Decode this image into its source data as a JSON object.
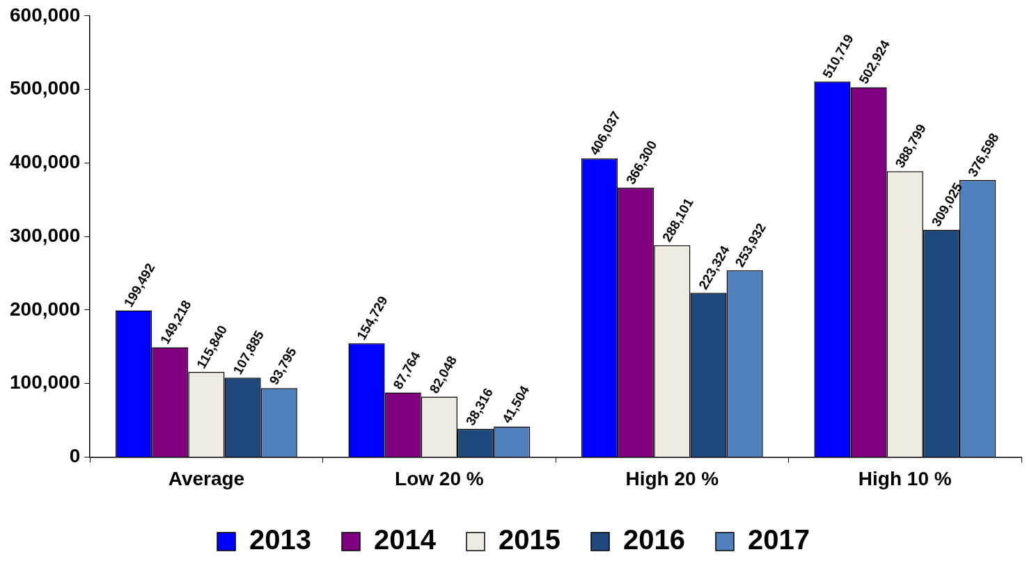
{
  "chart_data": {
    "type": "bar",
    "categories": [
      "Average",
      "Low 20 %",
      "High 20 %",
      "High 10 %"
    ],
    "series": [
      {
        "name": "2013",
        "color": "#0000ff",
        "values": [
          199492,
          154729,
          406037,
          510719
        ],
        "value_labels": [
          "199,492",
          "154,729",
          "406,037",
          "510,719"
        ]
      },
      {
        "name": "2014",
        "color": "#800080",
        "values": [
          149218,
          87764,
          366300,
          502924
        ],
        "value_labels": [
          "149,218",
          "87,764",
          "366,300",
          "502,924"
        ]
      },
      {
        "name": "2015",
        "color": "#eeece1",
        "values": [
          115840,
          82048,
          288101,
          388799
        ],
        "value_labels": [
          "115,840",
          "82,048",
          "288,101",
          "388,799"
        ]
      },
      {
        "name": "2016",
        "color": "#1f497d",
        "values": [
          107885,
          38316,
          223324,
          309025
        ],
        "value_labels": [
          "107,885",
          "38,316",
          "223,324",
          "309,025"
        ]
      },
      {
        "name": "2017",
        "color": "#4f81bd",
        "values": [
          93795,
          41504,
          253932,
          376598
        ],
        "value_labels": [
          "93,795",
          "41,504",
          "253,932",
          "376,598"
        ]
      }
    ],
    "ylim": [
      0,
      600000
    ],
    "yticks": [
      {
        "value": 0,
        "label": "0"
      },
      {
        "value": 100000,
        "label": "100,000"
      },
      {
        "value": 200000,
        "label": "200,000"
      },
      {
        "value": 300000,
        "label": "300,000"
      },
      {
        "value": 400000,
        "label": "400,000"
      },
      {
        "value": 500000,
        "label": "500,000"
      },
      {
        "value": 600000,
        "label": "600,000"
      }
    ],
    "grid": false,
    "legend": "bottom"
  }
}
